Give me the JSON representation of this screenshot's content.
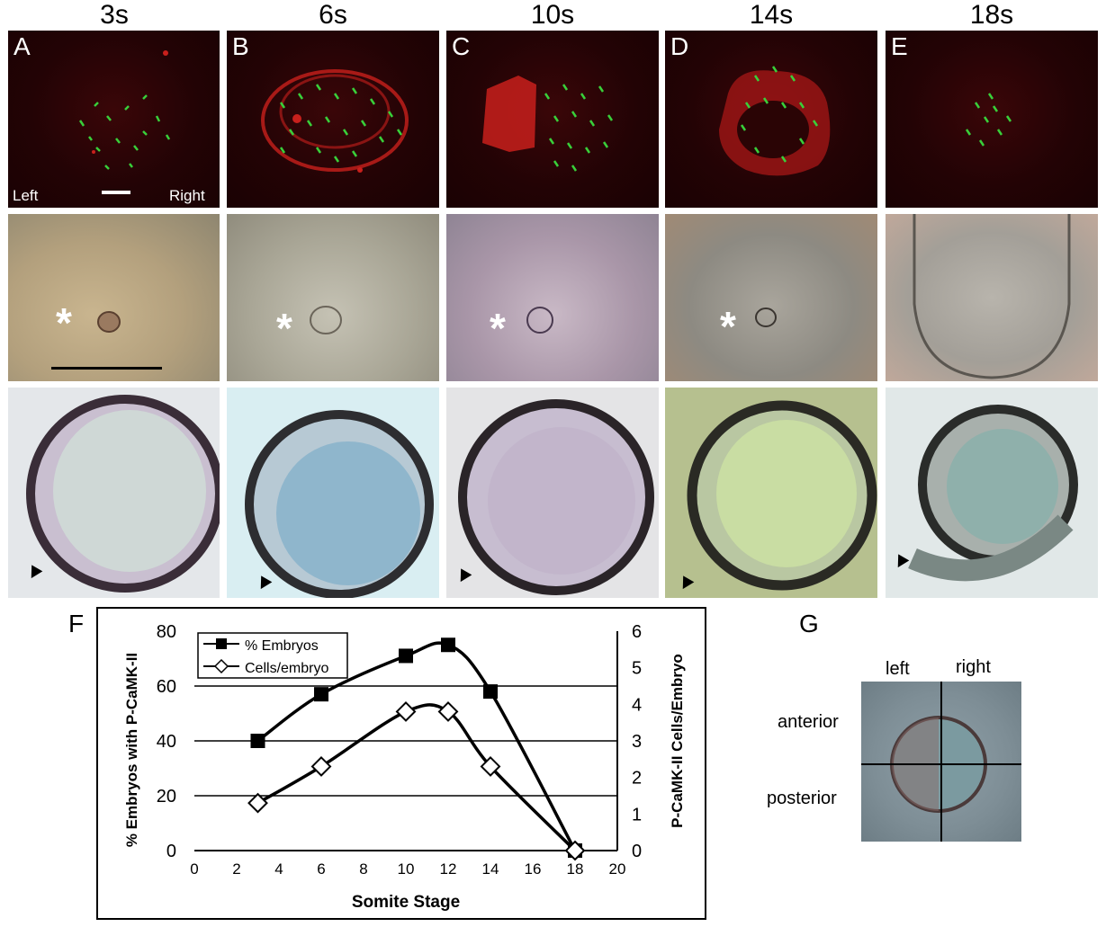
{
  "stages": [
    "3s",
    "6s",
    "10s",
    "14s",
    "18s"
  ],
  "panel_labels": [
    "A",
    "B",
    "C",
    "D",
    "E"
  ],
  "orientation": {
    "left": "Left",
    "right": "Right"
  },
  "panel_f_label": "F",
  "panel_g_label": "G",
  "panel_g": {
    "left": "left",
    "right": "right",
    "anterior": "anterior",
    "posterior": "posterior"
  },
  "colors": {
    "fluor_red": "#c8201c",
    "fluor_green": "#39d03a",
    "line": "#000000"
  },
  "chart_data": {
    "type": "line",
    "xlabel": "Somite Stage",
    "ylabel": "% Embryos with P-CaMK-II",
    "y2label": "P-CaMK-II Cells/Embryo",
    "xlim": [
      0,
      20
    ],
    "ylim": [
      0,
      80
    ],
    "y2lim": [
      0,
      6
    ],
    "xticks": [
      0,
      2,
      4,
      6,
      8,
      10,
      12,
      14,
      16,
      18,
      20
    ],
    "yticks": [
      0,
      20,
      40,
      60,
      80
    ],
    "y2ticks": [
      0,
      1,
      2,
      3,
      4,
      5,
      6
    ],
    "grid": "horizontal",
    "legend_position": "top-left",
    "series": [
      {
        "name": "% Embryos",
        "axis": "left",
        "marker": "filled-square",
        "x": [
          3,
          6,
          10,
          12,
          14,
          18
        ],
        "y": [
          40,
          57,
          71,
          75,
          58,
          0
        ]
      },
      {
        "name": "Cells/embryo",
        "axis": "right",
        "marker": "open-diamond",
        "x": [
          3,
          6,
          10,
          12,
          14,
          18
        ],
        "y": [
          1.3,
          2.3,
          3.8,
          3.8,
          2.3,
          0
        ]
      }
    ]
  }
}
